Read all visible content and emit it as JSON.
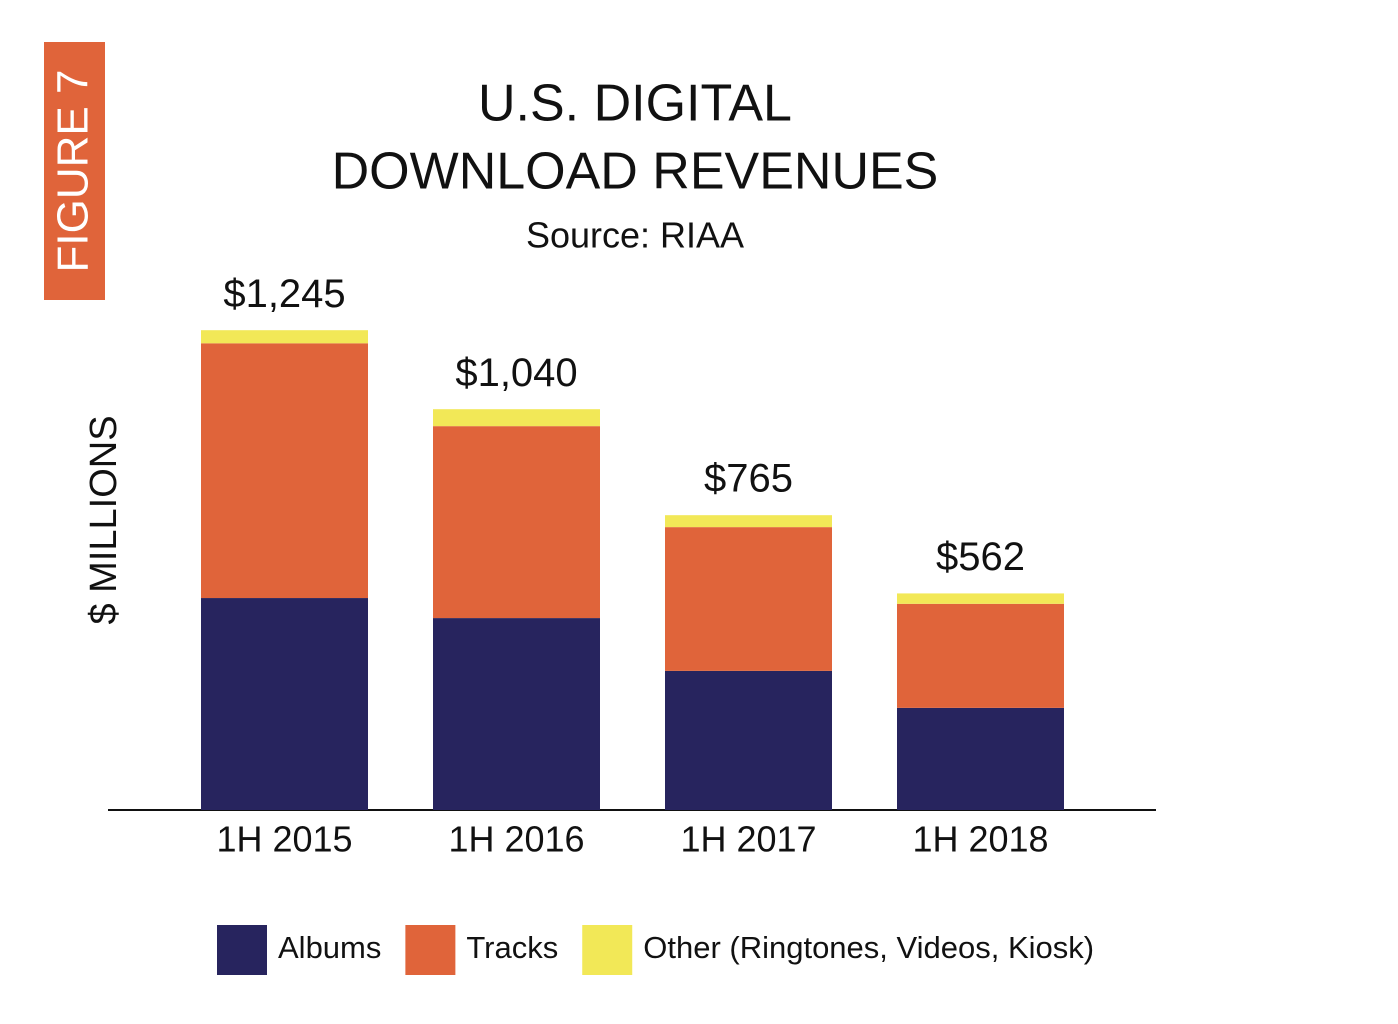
{
  "chart_data": {
    "type": "stacked-bar",
    "figure_label": "FIGURE 7",
    "title_lines": [
      "U.S. DIGITAL",
      "DOWNLOAD REVENUES"
    ],
    "subtitle": "Source: RIAA",
    "y_label": "$ MILLIONS",
    "categories": [
      "1H 2015",
      "1H 2016",
      "1H 2017",
      "1H 2018"
    ],
    "series": [
      {
        "name": "Albums",
        "color": "#27245e",
        "values": [
          550,
          498,
          361,
          265
        ]
      },
      {
        "name": "Tracks",
        "color": "#e0643a",
        "values": [
          661,
          498,
          373,
          270
        ]
      },
      {
        "name": "Other (Ringtones, Videos, Kiosk)",
        "color": "#f2e857",
        "values": [
          34,
          44,
          31,
          27
        ]
      }
    ],
    "totals": [
      1245,
      1040,
      765,
      562
    ],
    "total_labels": [
      "$1,245",
      "$1,040",
      "$765",
      "$562"
    ],
    "ylim": [
      0,
      1300
    ],
    "legend": "bottom"
  }
}
